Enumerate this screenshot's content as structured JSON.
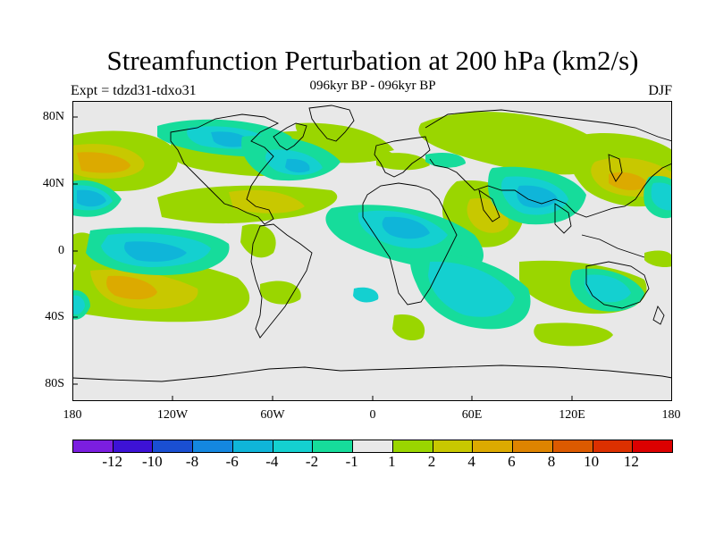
{
  "title": "Streamfunction Perturbation at 200 hPa (km2/s)",
  "subtitle": "096kyr BP - 096kyr BP",
  "left_string": "Expt = tdzd31-tdxo31",
  "right_string": "DJF",
  "lat_labels": [
    "80N",
    "40N",
    "0",
    "40S",
    "80S"
  ],
  "lon_labels": [
    "180",
    "120W",
    "60W",
    "0",
    "60E",
    "120E",
    "180"
  ],
  "colorbar": {
    "colors": [
      "#7b1ee0",
      "#3d12d6",
      "#1a4fd2",
      "#1487e0",
      "#0fb5d9",
      "#14d0d0",
      "#16dc9b",
      "#e8e8e8",
      "#9ad600",
      "#c8c800",
      "#dcaa00",
      "#de8400",
      "#dc5a00",
      "#dc3000",
      "#dc0000"
    ],
    "labels": [
      "-12",
      "-10",
      "-8",
      "-6",
      "-4",
      "-2",
      "-1",
      "1",
      "2",
      "4",
      "6",
      "8",
      "10",
      "12"
    ]
  },
  "colors": {
    "land_line": "#000000",
    "background": "#e8e8e8",
    "neg_strong": "#0fb5d9",
    "neg_mid": "#14d0d0",
    "neg_weak": "#16dc9b",
    "pos_weak": "#9ad600",
    "pos_mid": "#c8c800",
    "pos_strong": "#dcaa00",
    "pos_stronger": "#de8400"
  }
}
